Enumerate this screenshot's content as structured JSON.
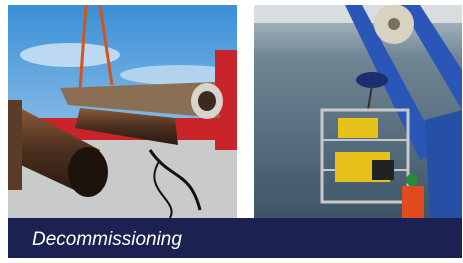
{
  "caption": {
    "title": "Decommissioning"
  }
}
